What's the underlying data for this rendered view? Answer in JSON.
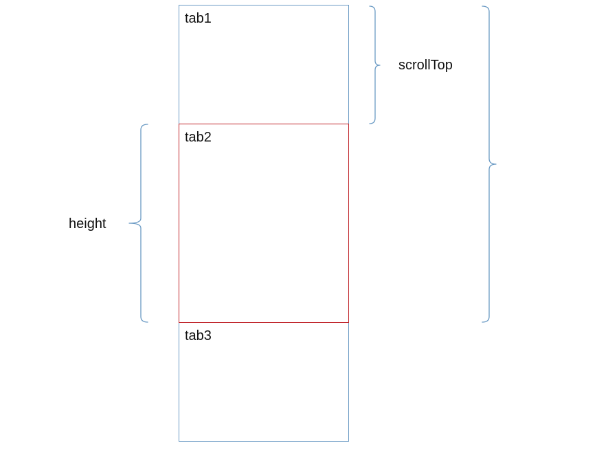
{
  "tabs": [
    {
      "label": "tab1"
    },
    {
      "label": "tab2"
    },
    {
      "label": "tab3"
    }
  ],
  "annotations": {
    "scroll_top_label": "scrollTop",
    "height_label": "height"
  },
  "colors": {
    "tab_border": "#6a9ac4",
    "active_tab_border": "#c0242a",
    "bracket": "#6a9ac4",
    "text": "#111111"
  }
}
